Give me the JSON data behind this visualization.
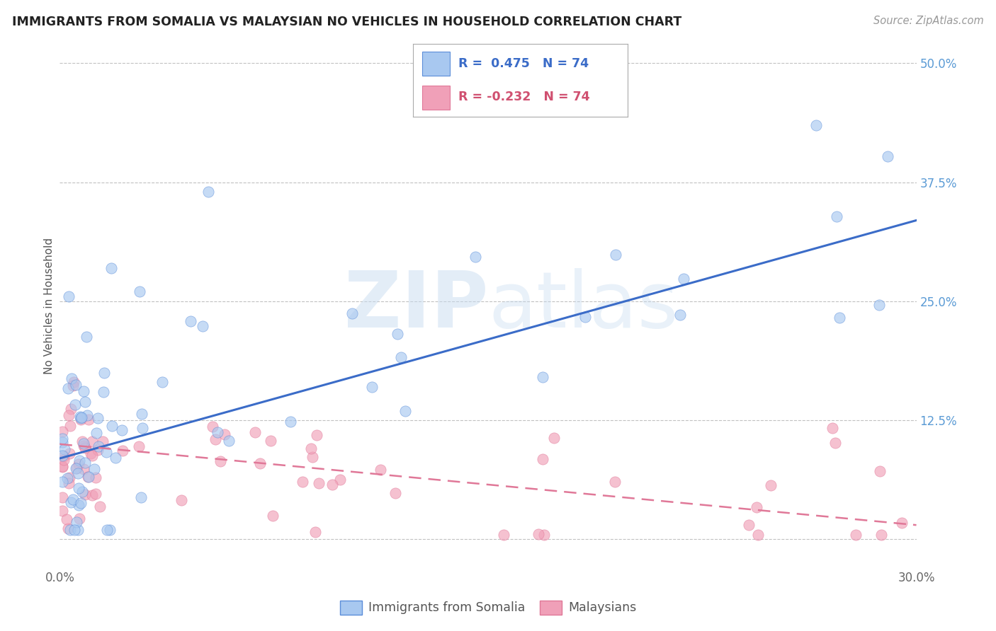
{
  "title": "IMMIGRANTS FROM SOMALIA VS MALAYSIAN NO VEHICLES IN HOUSEHOLD CORRELATION CHART",
  "source": "Source: ZipAtlas.com",
  "ylabel": "No Vehicles in Household",
  "x_min": 0.0,
  "x_max": 0.3,
  "y_min": -0.03,
  "y_max": 0.52,
  "x_ticks": [
    0.0,
    0.05,
    0.1,
    0.15,
    0.2,
    0.25,
    0.3
  ],
  "x_tick_labels": [
    "0.0%",
    "",
    "",
    "",
    "",
    "",
    "30.0%"
  ],
  "y_ticks": [
    0.0,
    0.125,
    0.25,
    0.375,
    0.5
  ],
  "y_tick_labels": [
    "",
    "12.5%",
    "25.0%",
    "37.5%",
    "50.0%"
  ],
  "color_somalia": "#A8C8F0",
  "color_malaysia": "#F0A0B8",
  "color_somalia_edge": "#5B8DD9",
  "color_malaysia_edge": "#E07898",
  "color_somalia_line": "#3B6CC8",
  "color_malaysia_line": "#E07898",
  "legend1_label": "Immigrants from Somalia",
  "legend2_label": "Malaysians",
  "watermark": "ZIPatlas",
  "background_color": "#FFFFFF",
  "grid_color": "#BBBBBB",
  "somalia_line_x0": 0.0,
  "somalia_line_x1": 0.3,
  "somalia_line_y0": 0.085,
  "somalia_line_y1": 0.335,
  "malaysia_line_x0": 0.0,
  "malaysia_line_x1": 0.3,
  "malaysia_line_y0": 0.1,
  "malaysia_line_y1": 0.015,
  "marker_size": 120,
  "marker_alpha": 0.65
}
